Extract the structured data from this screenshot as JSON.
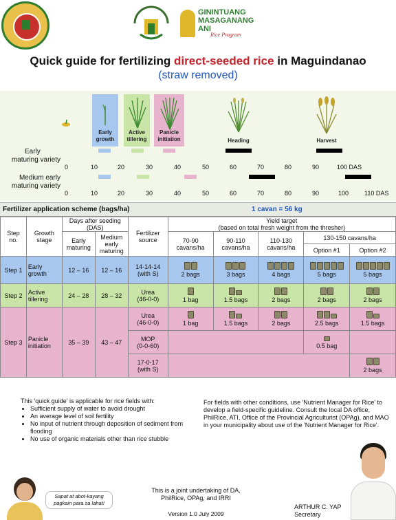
{
  "header": {
    "logo_left_icon": "province-seal-icon",
    "logo_mid_icon": "department-agriculture-seal-icon",
    "logo_right_lines": [
      "GININTUANG",
      "MASAGANANG",
      "ANI"
    ],
    "logo_right_program": "Rice Program",
    "title_pre": "Quick guide for fertilizing ",
    "title_hl": "direct-seeded rice",
    "title_post": " in Maguindanao",
    "subtitle": "(straw removed)"
  },
  "growth": {
    "stages": [
      {
        "label1": "Early",
        "label2": "growth",
        "color": "#a7c7ee"
      },
      {
        "label1": "Active",
        "label2": "tillering",
        "color": "#c8e4a6"
      },
      {
        "label1": "Panicle",
        "label2": "initiation",
        "color": "#e7b3cd"
      }
    ],
    "heading": "Heading",
    "harvest": "Harvest",
    "early_variety": [
      "Early",
      "maturing variety"
    ],
    "medium_variety": [
      "Medium early",
      "maturing variety"
    ],
    "early_ticks": [
      "0",
      "10",
      "20",
      "30",
      "40",
      "50",
      "60",
      "70",
      "80",
      "90",
      "100 DAS"
    ],
    "medium_ticks": [
      "0",
      "10",
      "20",
      "30",
      "40",
      "50",
      "60",
      "70",
      "80",
      "90",
      "100",
      "110 DAS"
    ]
  },
  "scheme": {
    "title": "Fertilizer application scheme (bags/ha)",
    "cavan": "1 cavan = 56 kg"
  },
  "table": {
    "h_step": [
      "Step",
      "no."
    ],
    "h_growth": [
      "Growth",
      "stage"
    ],
    "h_days": [
      "Days after seeding",
      "(DAS)"
    ],
    "h_early": [
      "Early",
      "maturing"
    ],
    "h_medium": [
      "Medium",
      "early",
      "maturing"
    ],
    "h_fert": [
      "Fertilizer",
      "source"
    ],
    "h_yield": [
      "Yield target",
      "(based on total fresh weight from the thresher)"
    ],
    "h_y1": [
      "70-90",
      "cavans/ha"
    ],
    "h_y2": [
      "90-110",
      "cavans/ha"
    ],
    "h_y3": [
      "110-130",
      "cavans/ha"
    ],
    "h_y4": "130-150 cavans/ha",
    "h_opt1": "Option #1",
    "h_opt2": "Option #2",
    "row1": {
      "step": "Step 1",
      "stage": [
        "Early",
        "growth"
      ],
      "early": "12 – 16",
      "medium": "12 – 16",
      "fert": [
        "14-14-14",
        "(with S)"
      ],
      "cells": [
        "2 bags",
        "3 bags",
        "4 bags",
        "5 bags",
        "5 bags"
      ]
    },
    "row2": {
      "step": "Step 2",
      "stage": [
        "Active",
        "tillering"
      ],
      "early": "24 – 28",
      "medium": "28 – 32",
      "fert": [
        "Urea",
        "(46-0-0)"
      ],
      "cells": [
        "1 bag",
        "1.5 bags",
        "2 bags",
        "2 bags",
        "2 bags"
      ]
    },
    "row3": {
      "step": "Step 3",
      "stage": [
        "Panicle",
        "initiation"
      ],
      "early": "35 – 39",
      "medium": "43 – 47",
      "fert_a": [
        "Urea",
        "(46-0-0)"
      ],
      "cells_a": [
        "1 bag",
        "1.5 bags",
        "2 bags",
        "2.5 bags",
        "1.5 bags"
      ],
      "fert_b": [
        "MOP",
        "(0-0-60)"
      ],
      "cell_b": "0.5 bag",
      "fert_c": [
        "17-0-17",
        "(with S)"
      ],
      "cell_c": "2 bags"
    }
  },
  "notes": {
    "left_intro": "This 'quick guide' is applicable for rice fields with:",
    "left_items": [
      "Sufficient supply of water to avoid drought",
      "An average level of soil fertility",
      "No input of nutrient through deposition of sediment from flooding",
      "No use of organic materials other than rice stubble"
    ],
    "right": "For fields with other conditions, use 'Nutrient Manager for Rice' to develop a field-specific guideline. Consult the local DA office, PhilRice, ATI, Office of the Provincial Agriculturist (OPAg), and MAO in your municipality about use of the 'Nutrient Manager for Rice'.",
    "speech": [
      "Sapat at abot-kayang",
      "pagkain para sa lahat!"
    ],
    "joint": [
      "This is a joint undertaking of DA,",
      "PhilRice, OPAg, and IRRI"
    ],
    "version": "Version 1.0 July 2009",
    "secretary_name": "ARTHUR C. YAP",
    "secretary_title": "Secretary"
  }
}
